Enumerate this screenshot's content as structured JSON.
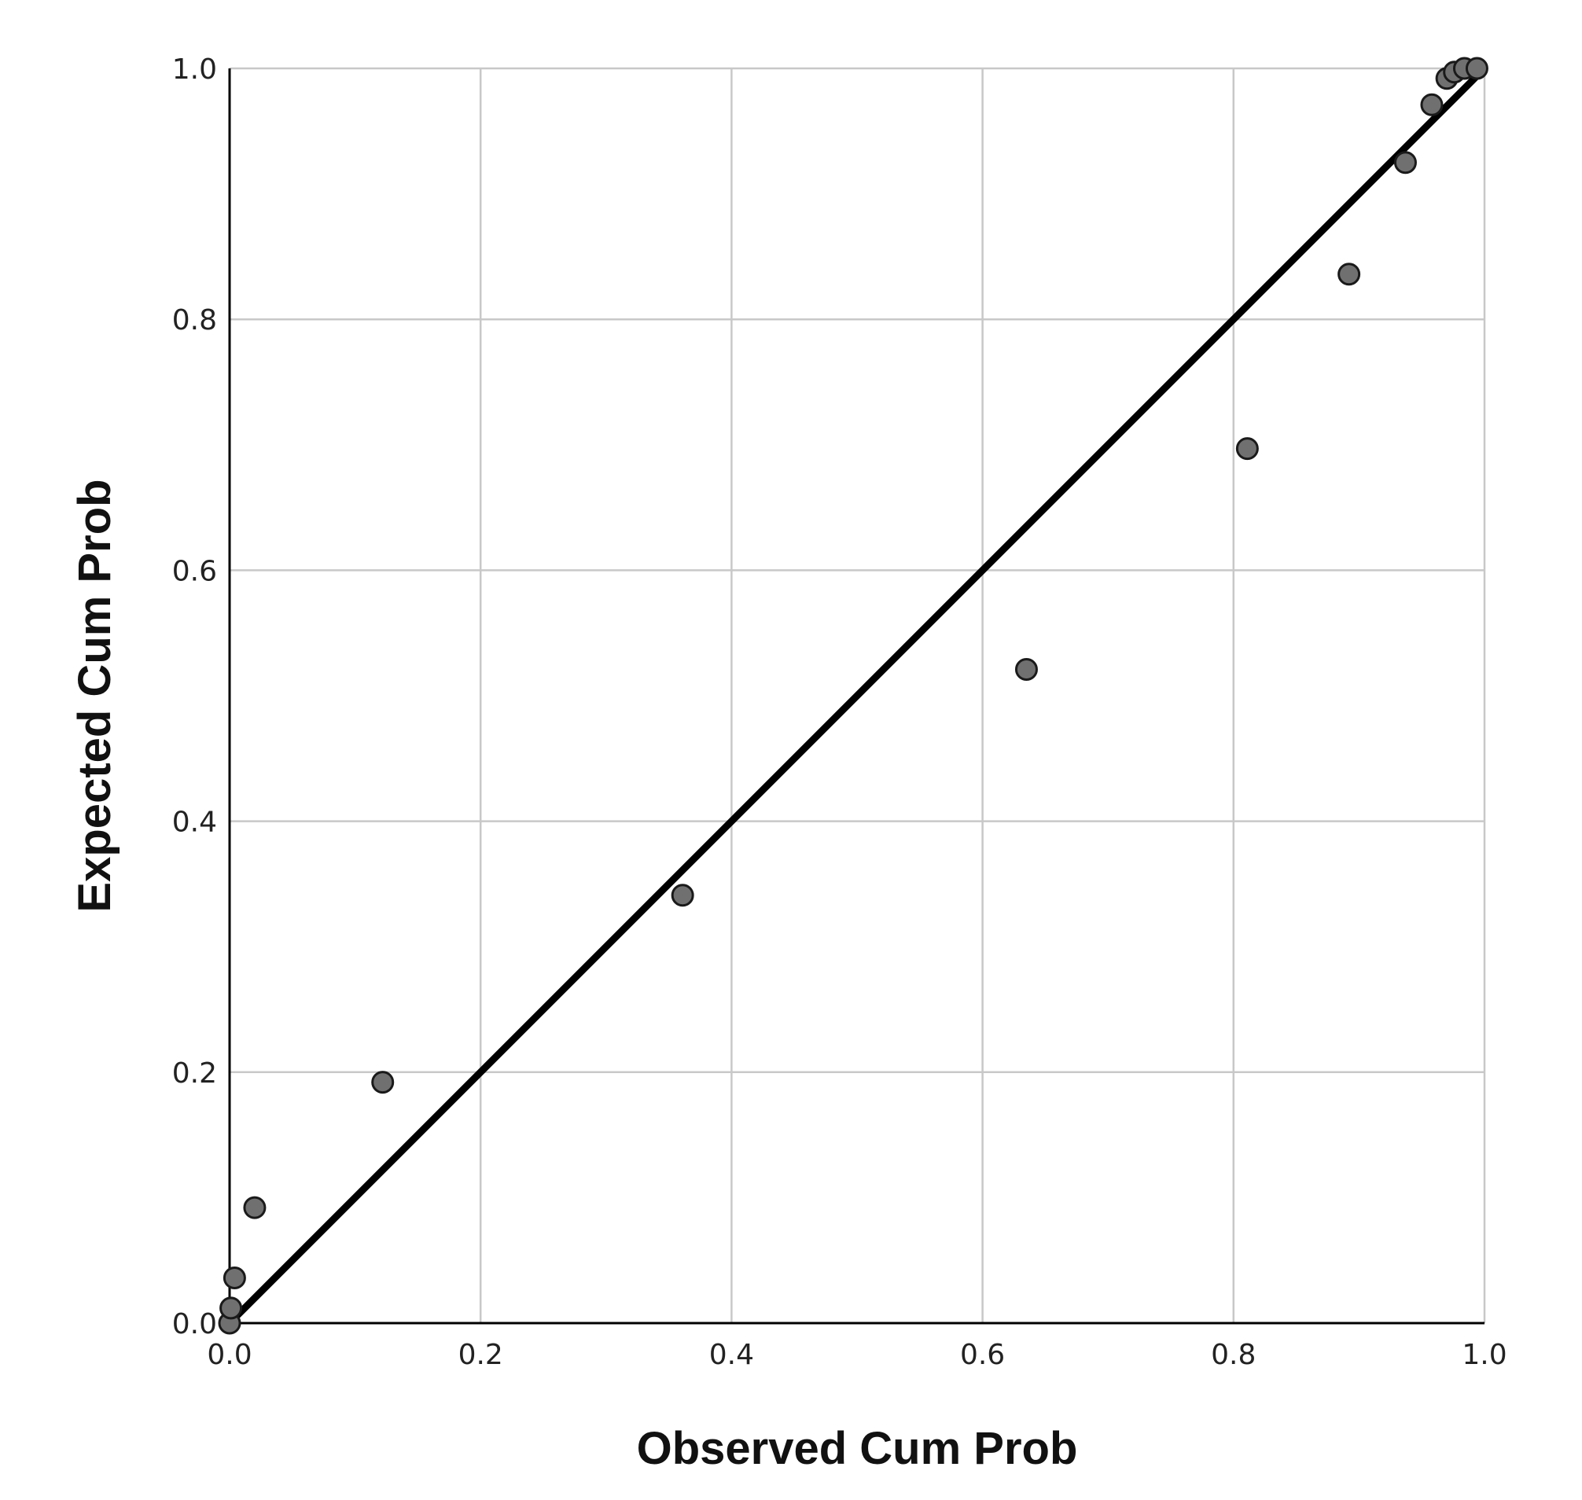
{
  "chart_data": {
    "type": "scatter",
    "title": "",
    "xlabel": "Observed Cum Prob",
    "ylabel": "Expected Cum Prob",
    "xlim": [
      0.0,
      1.0
    ],
    "ylim": [
      0.0,
      1.0
    ],
    "x_ticks": [
      "0.0",
      "0.2",
      "0.4",
      "0.6",
      "0.8",
      "1.0"
    ],
    "y_ticks": [
      "0.0",
      "0.2",
      "0.4",
      "0.6",
      "0.8",
      "1.0"
    ],
    "grid": true,
    "legend": "none",
    "reference_line": {
      "x": [
        0.0,
        1.0
      ],
      "y": [
        0.0,
        1.0
      ],
      "color": "#000000"
    },
    "series": [
      {
        "marker_color": "#707070",
        "points": [
          {
            "x": 0.0,
            "y": 0.0
          },
          {
            "x": 0.001,
            "y": 0.012
          },
          {
            "x": 0.004,
            "y": 0.036
          },
          {
            "x": 0.02,
            "y": 0.092
          },
          {
            "x": 0.122,
            "y": 0.192
          },
          {
            "x": 0.361,
            "y": 0.341
          },
          {
            "x": 0.635,
            "y": 0.521
          },
          {
            "x": 0.811,
            "y": 0.697
          },
          {
            "x": 0.892,
            "y": 0.836
          },
          {
            "x": 0.937,
            "y": 0.925
          },
          {
            "x": 0.958,
            "y": 0.971
          },
          {
            "x": 0.97,
            "y": 0.992
          },
          {
            "x": 0.976,
            "y": 0.997
          },
          {
            "x": 0.984,
            "y": 1.0
          },
          {
            "x": 0.994,
            "y": 1.0
          }
        ]
      }
    ]
  }
}
